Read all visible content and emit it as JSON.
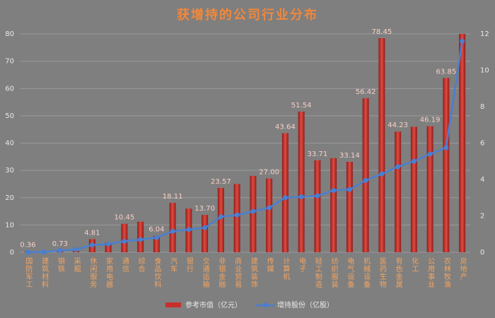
{
  "chart_data": {
    "type": "bar",
    "title": "获增持的公司行业分布",
    "categories": [
      "国防军工",
      "建筑材料",
      "钢铁",
      "采掘",
      "休闲服务",
      "家用电器",
      "通信",
      "综合",
      "食品饮料",
      "汽车",
      "银行",
      "交通运输",
      "非银金融",
      "商业贸易",
      "建筑装饰",
      "传媒",
      "计算机",
      "电子",
      "轻工制造",
      "纺织服装",
      "电气设备",
      "机械设备",
      "医药生物",
      "有色金属",
      "化工",
      "公用事业",
      "农林牧渔",
      "房地产"
    ],
    "series": [
      {
        "name": "参考市值（亿元）",
        "type": "bar",
        "color": "#c8302c",
        "values": [
          0.36,
          0.3,
          0.73,
          0.5,
          4.81,
          3.5,
          10.45,
          11.2,
          6.04,
          18.11,
          16,
          13.7,
          23.57,
          25,
          28,
          27.0,
          43.64,
          51.54,
          33.71,
          34.5,
          33.14,
          56.42,
          78.45,
          44.23,
          46,
          46.19,
          63.85,
          80
        ],
        "value_labels": [
          "0.36",
          null,
          "0.73",
          null,
          "4.81",
          null,
          "10.45",
          null,
          "6.04",
          "18.11",
          null,
          "13.70",
          "23.57",
          null,
          null,
          "27.00",
          "43.64",
          "51.54",
          "33.71",
          null,
          "33.14",
          "56.42",
          "78.45",
          "44.23",
          null,
          "46.19",
          "63.85",
          null
        ]
      },
      {
        "name": "增持股份（亿股）",
        "type": "line",
        "axis": "y2",
        "color": "#4a7fd0",
        "values": [
          0.0,
          0.02,
          0.1,
          0.15,
          0.4,
          0.45,
          0.6,
          0.7,
          0.8,
          1.15,
          1.25,
          1.35,
          1.95,
          2.05,
          2.25,
          2.45,
          3.0,
          3.05,
          3.1,
          3.4,
          3.45,
          3.95,
          4.3,
          4.7,
          5.0,
          5.4,
          5.75,
          11.6
        ]
      }
    ],
    "ylim": [
      0,
      80
    ],
    "yticks": [
      0,
      10,
      20,
      30,
      40,
      50,
      60,
      70,
      80
    ],
    "y2lim": [
      0,
      12
    ],
    "y2ticks": [
      0,
      2,
      4,
      6,
      8,
      10,
      12
    ],
    "grid": true,
    "legend": "bottom"
  }
}
